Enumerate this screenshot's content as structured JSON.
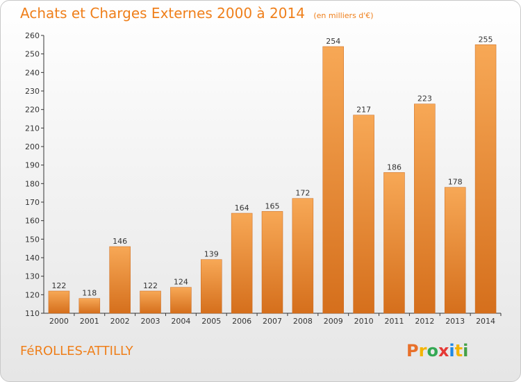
{
  "header": {
    "title": "Achats et Charges Externes 2000 à 2014",
    "subtitle": "(en milliers d'€)"
  },
  "footer": {
    "town": "FéROLLES-ATTILLY",
    "brand": "Proxiti",
    "brand_colors": [
      "#e8702a",
      "#f4b400",
      "#34a853",
      "#e53935",
      "#1e88e5",
      "#f4b400",
      "#43a047"
    ]
  },
  "colors": {
    "bar_light": "#f7a856",
    "bar_dark": "#d56f1c",
    "title": "#ef7f1a",
    "axis": "#333333"
  },
  "chart_data": {
    "type": "bar",
    "title": "Achats et Charges Externes 2000 à 2014",
    "subtitle": "(en milliers d'€)",
    "categories": [
      "2000",
      "2001",
      "2002",
      "2003",
      "2004",
      "2005",
      "2006",
      "2007",
      "2008",
      "2009",
      "2010",
      "2011",
      "2012",
      "2013",
      "2014"
    ],
    "values": [
      122,
      118,
      146,
      122,
      124,
      139,
      164,
      165,
      172,
      254,
      217,
      186,
      223,
      178,
      255
    ],
    "ylim": [
      110,
      260
    ],
    "yticks": [
      110,
      120,
      130,
      140,
      150,
      160,
      170,
      180,
      190,
      200,
      210,
      220,
      230,
      240,
      250,
      260
    ],
    "grid": false,
    "legend": "none"
  }
}
